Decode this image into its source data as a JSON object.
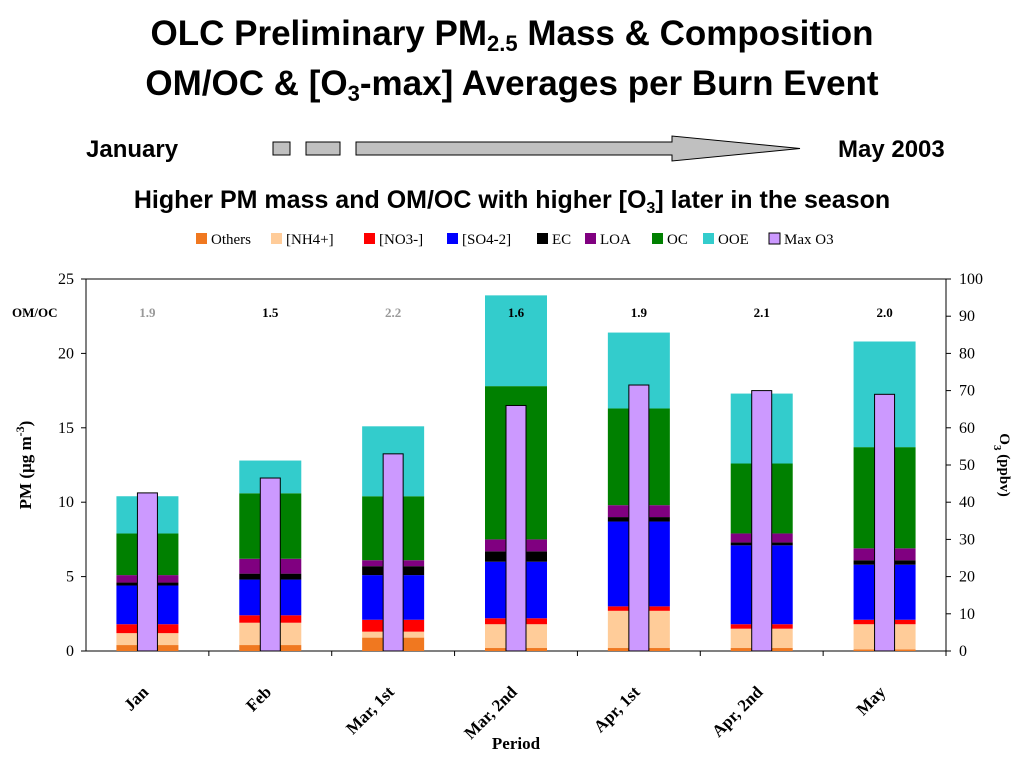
{
  "titles": {
    "line1_pre": "OLC Preliminary PM",
    "line1_sub": "2.5",
    "line1_post": " Mass & Composition",
    "line2_pre": "OM/OC & [O",
    "line2_sub": "3",
    "line2_post": "-max] Averages per Burn Event"
  },
  "timeline": {
    "start": "January",
    "end": "May 2003"
  },
  "subtitle": {
    "pre": "Higher PM mass and OM/OC with higher [O",
    "sub": "3",
    "post": "] later in the season"
  },
  "colors": {
    "Others": "#f07820",
    "[NH4+]": "#ffcc99",
    "[NO3-]": "#ff0000",
    "[SO4-2]": "#0000ff",
    "EC": "#000000",
    "LOA": "#800080",
    "OC": "#008000",
    "OOE": "#33cccc",
    "Max O3": "#cc99ff",
    "omoc_grey": "#999999"
  },
  "chart_data": {
    "type": "bar",
    "stacked": true,
    "xlabel": "Period",
    "ylabel": "PM  (µg m-3)",
    "ylabel_parts": {
      "pre": "PM  (µg m",
      "sup": "-3",
      "post": ")"
    },
    "y2label_parts": {
      "pre": "O",
      "sub": "3",
      "post": " (ppbv)"
    },
    "ylim": [
      0,
      25
    ],
    "y2lim": [
      0,
      100
    ],
    "yticks": [
      "0",
      "5",
      "10",
      "15",
      "20",
      "25"
    ],
    "y2ticks": [
      "0",
      "10",
      "20",
      "30",
      "40",
      "50",
      "60",
      "70",
      "80",
      "90",
      "100"
    ],
    "categories": [
      "Jan",
      "Feb",
      "Mar, 1st",
      "Mar, 2nd",
      "Apr, 1st",
      "Apr, 2nd",
      "May"
    ],
    "series": [
      {
        "name": "Others",
        "values": [
          0.4,
          0.4,
          0.9,
          0.2,
          0.2,
          0.2,
          0.1
        ]
      },
      {
        "name": "[NH4+]",
        "values": [
          0.8,
          1.5,
          0.4,
          1.6,
          2.5,
          1.3,
          1.7
        ]
      },
      {
        "name": "[NO3-]",
        "values": [
          0.6,
          0.5,
          0.8,
          0.4,
          0.3,
          0.3,
          0.3
        ]
      },
      {
        "name": "[SO4-2]",
        "values": [
          2.6,
          2.4,
          3.0,
          3.8,
          5.7,
          5.3,
          3.7
        ]
      },
      {
        "name": "EC",
        "values": [
          0.2,
          0.4,
          0.6,
          0.7,
          0.3,
          0.2,
          0.3
        ]
      },
      {
        "name": "LOA",
        "values": [
          0.5,
          1.0,
          0.4,
          0.8,
          0.8,
          0.6,
          0.8
        ]
      },
      {
        "name": "OC",
        "values": [
          2.8,
          4.4,
          4.3,
          10.3,
          6.5,
          4.7,
          6.8
        ]
      },
      {
        "name": "OOE",
        "values": [
          2.5,
          2.2,
          4.7,
          6.1,
          5.1,
          4.7,
          7.1
        ]
      }
    ],
    "secondary_series": {
      "name": "Max O3",
      "axis": "y2",
      "values": [
        42.5,
        46.5,
        53,
        66,
        71.5,
        70,
        69
      ]
    },
    "omoc_label": "OM/OC",
    "omoc": [
      {
        "text": "1.9",
        "highlight": false
      },
      {
        "text": "1.5",
        "highlight": true
      },
      {
        "text": "2.2",
        "highlight": false
      },
      {
        "text": "1.6",
        "highlight": true
      },
      {
        "text": "1.9",
        "highlight": true
      },
      {
        "text": "2.1",
        "highlight": true
      },
      {
        "text": "2.0",
        "highlight": true
      }
    ],
    "legend": [
      "Others",
      "[NH4+]",
      "[NO3-]",
      "[SO4-2]",
      "EC",
      "LOA",
      "OC",
      "OOE",
      "Max O3"
    ],
    "legend_position": "top"
  }
}
